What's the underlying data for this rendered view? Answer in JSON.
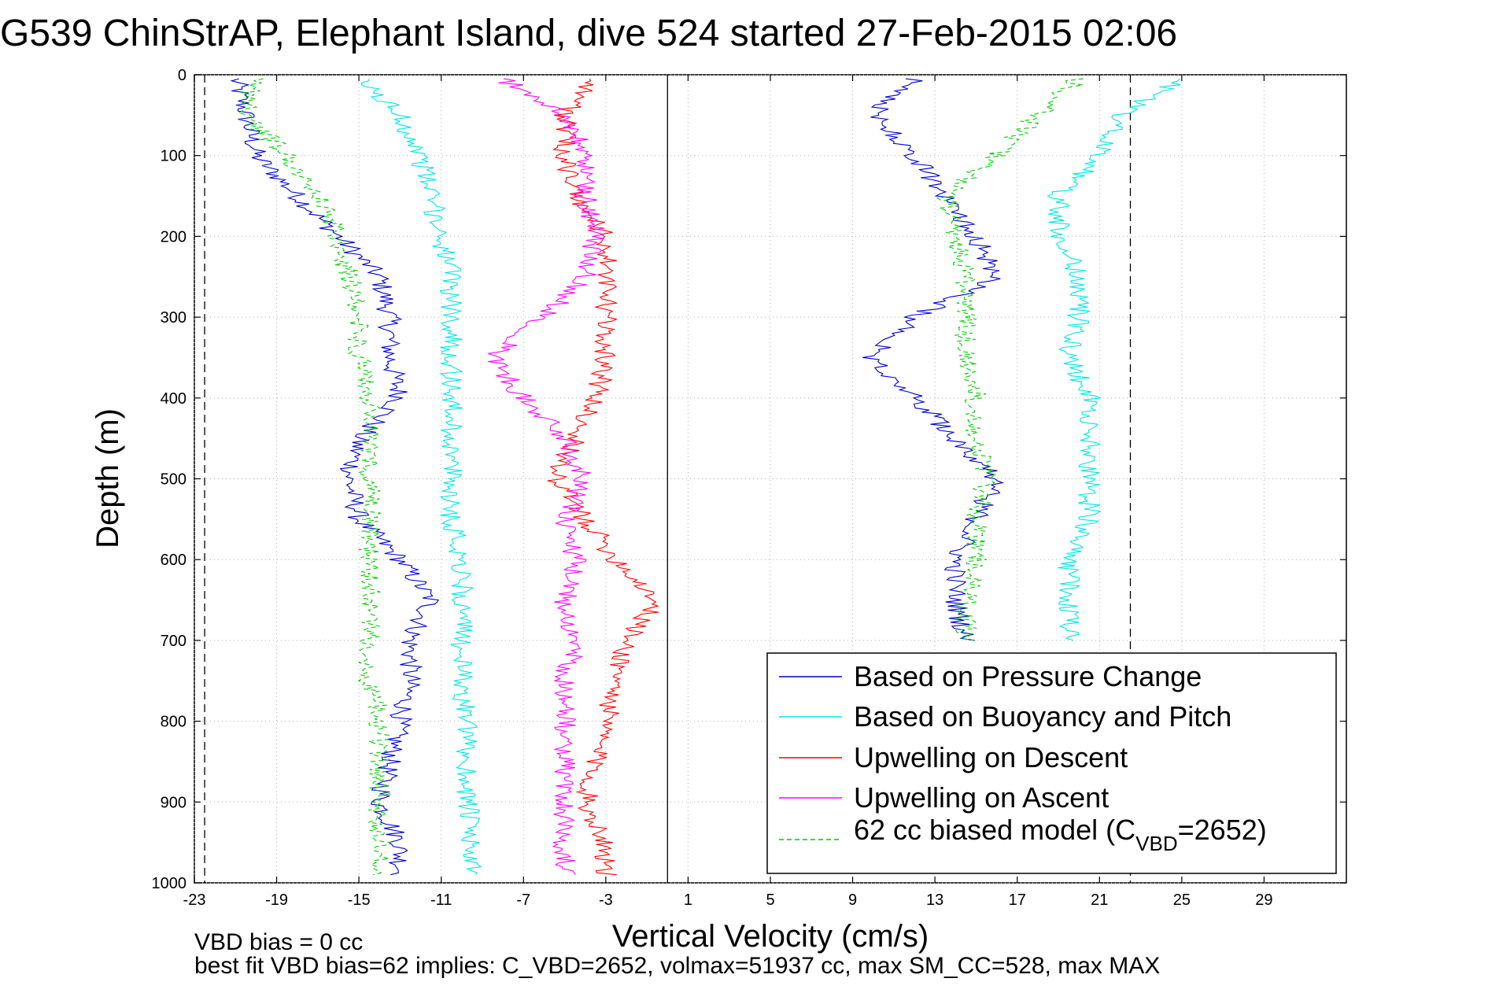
{
  "chart_data": {
    "type": "line",
    "title": "G539 ChinStrAP, Elephant Island, dive 524 started 27-Feb-2015 02:06",
    "xlabel": "Vertical Velocity (cm/s)",
    "ylabel": "Depth (m)",
    "xlim": [
      -23,
      33
    ],
    "ylim": [
      0,
      1000
    ],
    "y_reversed": true,
    "grid": true,
    "xticks": [
      -23,
      -19,
      -15,
      -11,
      -7,
      -3,
      1,
      5,
      9,
      13,
      17,
      21,
      25,
      29
    ],
    "yticks": [
      0,
      100,
      200,
      300,
      400,
      500,
      600,
      700,
      800,
      900,
      1000
    ],
    "vertical_lines": [
      {
        "x": -22.5,
        "style": "dashed",
        "color": "#000000"
      },
      {
        "x": 0,
        "style": "solid",
        "color": "#000000"
      },
      {
        "x": 22.5,
        "style": "dashed",
        "color": "#000000"
      }
    ],
    "legend_position": "bottom-right",
    "legend": {
      "entries": [
        {
          "label": "Based on Pressure Change",
          "color": "#0000cc",
          "dash": false
        },
        {
          "label": "Based on Buoyancy and Pitch",
          "color": "#00e5e5",
          "dash": false
        },
        {
          "label": "Upwelling on Descent",
          "color": "#ff0000",
          "dash": false
        },
        {
          "label": "Upwelling on Ascent",
          "color": "#ff00ff",
          "dash": false
        },
        {
          "label_main": "62 cc biased model (C",
          "label_sub": "VBD",
          "label_end": "=2652)",
          "color": "#00cc00",
          "dash": true
        }
      ]
    },
    "series": [
      {
        "color": "#0000cc",
        "depth": [
          5,
          50,
          100,
          150,
          200,
          250,
          300,
          350,
          400,
          450,
          500,
          550,
          600,
          650,
          700,
          750,
          800,
          850,
          900,
          950,
          990
        ],
        "x": [
          -21,
          -20.5,
          -20,
          -18,
          -16,
          -14,
          -13.5,
          -13.5,
          -13,
          -15,
          -15.5,
          -15,
          -13,
          -11.5,
          -12.5,
          -12.5,
          -13,
          -13.5,
          -14,
          -13,
          -13
        ]
      },
      {
        "color": "#00e5e5",
        "depth": [
          5,
          50,
          100,
          150,
          200,
          250,
          300,
          350,
          400,
          450,
          500,
          550,
          600,
          650,
          700,
          750,
          800,
          850,
          900,
          950,
          990
        ],
        "x": [
          -15,
          -13,
          -12,
          -11.5,
          -11,
          -10.5,
          -10.5,
          -10.5,
          -10.5,
          -10.5,
          -10.5,
          -10.5,
          -10,
          -10,
          -10,
          -10,
          -9.8,
          -9.8,
          -9.7,
          -9.6,
          -9.6
        ]
      },
      {
        "color": "#ff0000",
        "depth": [
          5,
          50,
          100,
          150,
          200,
          250,
          300,
          350,
          400,
          450,
          500,
          550,
          600,
          650,
          700,
          750,
          800,
          850,
          900,
          950,
          990
        ],
        "x": [
          -3.5,
          -5,
          -5,
          -4.5,
          -3,
          -3,
          -3,
          -3,
          -3.5,
          -4.5,
          -5.5,
          -4,
          -2.5,
          -0.5,
          -2,
          -2.5,
          -3,
          -3.5,
          -4,
          -3,
          -3
        ]
      },
      {
        "color": "#ff00ff",
        "depth": [
          5,
          50,
          100,
          150,
          200,
          250,
          300,
          350,
          400,
          450,
          500,
          550,
          600,
          650,
          700,
          750,
          800,
          850,
          900,
          950,
          990
        ],
        "x": [
          -8,
          -5,
          -4,
          -4,
          -3.5,
          -4,
          -6,
          -8.5,
          -7,
          -5,
          -4,
          -5,
          -4.5,
          -5,
          -4.5,
          -5,
          -5,
          -5,
          -5,
          -5,
          -5
        ]
      },
      {
        "color": "#00cc00",
        "dash": true,
        "depth": [
          5,
          50,
          100,
          150,
          200,
          250,
          300,
          350,
          400,
          450,
          500,
          550,
          600,
          650,
          700,
          750,
          800,
          850,
          900,
          950,
          990
        ],
        "x": [
          -20,
          -20.5,
          -18.5,
          -17,
          -16,
          -15.5,
          -15,
          -15,
          -14.5,
          -14.5,
          -14.5,
          -14.5,
          -14.5,
          -14.5,
          -14.5,
          -14.5,
          -14,
          -14,
          -14,
          -14,
          -14
        ]
      },
      {
        "color": "#0000cc",
        "depth": [
          5,
          50,
          100,
          150,
          200,
          250,
          300,
          350,
          400,
          450,
          500,
          550,
          600,
          650,
          700
        ],
        "x": [
          12,
          10,
          12,
          13.5,
          15,
          16,
          12,
          10,
          12,
          14,
          16,
          15,
          14,
          14,
          14.5
        ]
      },
      {
        "color": "#00e5e5",
        "depth": [
          5,
          50,
          100,
          150,
          200,
          250,
          300,
          350,
          400,
          450,
          500,
          550,
          600,
          650,
          700
        ],
        "x": [
          25,
          22,
          21,
          19,
          19,
          20,
          20,
          19.5,
          20.5,
          20.5,
          20.5,
          20.5,
          19.5,
          19.5,
          19.5
        ]
      },
      {
        "color": "#00cc00",
        "dash": true,
        "depth": [
          5,
          50,
          100,
          150,
          200,
          250,
          300,
          350,
          400,
          450,
          500,
          550,
          600,
          650,
          700
        ],
        "x": [
          20,
          18,
          16,
          13.5,
          14,
          14.5,
          14.5,
          14.5,
          15,
          15,
          15.5,
          15,
          15,
          14.5,
          14.5
        ]
      }
    ]
  },
  "footer": {
    "line1": "VBD bias = 0 cc",
    "line2": "best fit VBD bias=62 implies: C_VBD=2652, volmax=51937 cc, max SM_CC=528, max MAX"
  }
}
